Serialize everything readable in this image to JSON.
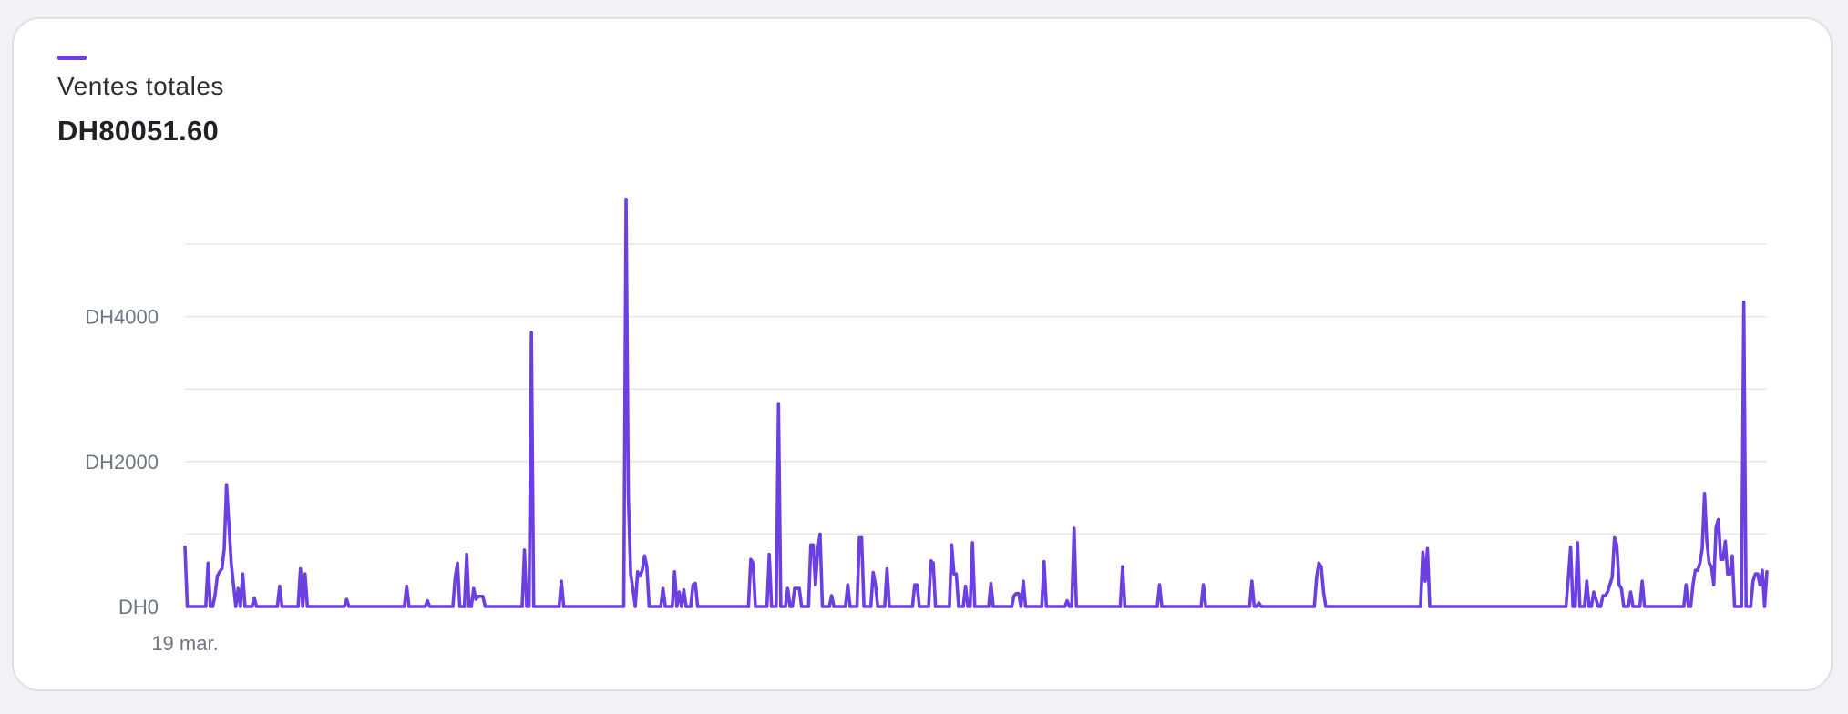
{
  "card": {
    "series_label": "Ventes totales",
    "total": "DH80051.60"
  },
  "colors": {
    "line": "#6b3fe0",
    "grid": "#e4e6ea",
    "axis_text": "#6d7585"
  },
  "chart_data": {
    "type": "line",
    "title": "",
    "xlabel": "",
    "ylabel": "",
    "currency_prefix": "DH",
    "ylim": [
      0,
      5000
    ],
    "grid": true,
    "yticks": [
      {
        "value": 0,
        "label": "DH0"
      },
      {
        "value": 2000,
        "label": "DH2000"
      },
      {
        "value": 4000,
        "label": "DH4000"
      }
    ],
    "x_tick_labels": [
      {
        "index": 0,
        "label": "19 mar."
      }
    ],
    "series": [
      {
        "values": [
          820,
          0,
          0,
          0,
          0,
          0,
          0,
          0,
          0,
          0,
          600,
          0,
          0,
          150,
          420,
          480,
          520,
          800,
          1680,
          1150,
          600,
          300,
          0,
          250,
          0,
          450,
          0,
          0,
          0,
          0,
          120,
          0,
          0,
          0,
          0,
          0,
          0,
          0,
          0,
          0,
          0,
          280,
          0,
          0,
          0,
          0,
          0,
          0,
          0,
          0,
          520,
          0,
          450,
          0,
          0,
          0,
          0,
          0,
          0,
          0,
          0,
          0,
          0,
          0,
          0,
          0,
          0,
          0,
          0,
          0,
          100,
          0,
          0,
          0,
          0,
          0,
          0,
          0,
          0,
          0,
          0,
          0,
          0,
          0,
          0,
          0,
          0,
          0,
          0,
          0,
          0,
          0,
          0,
          0,
          0,
          0,
          280,
          0,
          0,
          0,
          0,
          0,
          0,
          0,
          0,
          80,
          0,
          0,
          0,
          0,
          0,
          0,
          0,
          0,
          0,
          0,
          0,
          400,
          600,
          0,
          0,
          0,
          720,
          0,
          0,
          250,
          100,
          140,
          140,
          140,
          0,
          0,
          0,
          0,
          0,
          0,
          0,
          0,
          0,
          0,
          0,
          0,
          0,
          0,
          0,
          0,
          0,
          780,
          0,
          0,
          3780,
          0,
          0,
          0,
          0,
          0,
          0,
          0,
          0,
          0,
          0,
          0,
          0,
          350,
          0,
          0,
          0,
          0,
          0,
          0,
          0,
          0,
          0,
          0,
          0,
          0,
          0,
          0,
          0,
          0,
          0,
          0,
          0,
          0,
          0,
          0,
          0,
          0,
          0,
          0,
          0,
          5620,
          1500,
          450,
          230,
          0,
          480,
          420,
          500,
          700,
          550,
          0,
          0,
          0,
          0,
          0,
          0,
          250,
          0,
          0,
          0,
          0,
          480,
          0,
          200,
          0,
          230,
          0,
          0,
          0,
          300,
          320,
          0,
          0,
          0,
          0,
          0,
          0,
          0,
          0,
          0,
          0,
          0,
          0,
          0,
          0,
          0,
          0,
          0,
          0,
          0,
          0,
          0,
          0,
          0,
          650,
          600,
          0,
          0,
          0,
          0,
          0,
          0,
          720,
          0,
          0,
          0,
          2800,
          0,
          0,
          0,
          250,
          0,
          0,
          250,
          250,
          250,
          0,
          0,
          0,
          0,
          850,
          850,
          300,
          780,
          1000,
          0,
          0,
          0,
          0,
          150,
          0,
          0,
          0,
          0,
          0,
          0,
          300,
          0,
          0,
          0,
          0,
          950,
          950,
          0,
          0,
          0,
          0,
          470,
          300,
          0,
          0,
          0,
          0,
          520,
          0,
          0,
          0,
          0,
          0,
          0,
          0,
          0,
          0,
          0,
          0,
          300,
          300,
          0,
          0,
          0,
          0,
          0,
          630,
          600,
          0,
          0,
          0,
          0,
          0,
          0,
          0,
          850,
          450,
          450,
          0,
          0,
          0,
          280,
          0,
          0,
          880,
          0,
          0,
          0,
          0,
          0,
          0,
          0,
          320,
          0,
          0,
          0,
          0,
          0,
          0,
          0,
          0,
          0,
          150,
          180,
          180,
          0,
          350,
          0,
          0,
          0,
          0,
          0,
          0,
          0,
          0,
          620,
          0,
          0,
          0,
          0,
          0,
          0,
          0,
          0,
          0,
          80,
          0,
          0,
          1080,
          0,
          0,
          0,
          0,
          0,
          0,
          0,
          0,
          0,
          0,
          0,
          0,
          0,
          0,
          0,
          0,
          0,
          0,
          0,
          0,
          550,
          0,
          0,
          0,
          0,
          0,
          0,
          0,
          0,
          0,
          0,
          0,
          0,
          0,
          0,
          0,
          300,
          0,
          0,
          0,
          0,
          0,
          0,
          0,
          0,
          0,
          0,
          0,
          0,
          0,
          0,
          0,
          0,
          0,
          0,
          300,
          0,
          0,
          0,
          0,
          0,
          0,
          0,
          0,
          0,
          0,
          0,
          0,
          0,
          0,
          0,
          0,
          0,
          0,
          0,
          0,
          350,
          0,
          0,
          50,
          0,
          0,
          0,
          0,
          0,
          0,
          0,
          0,
          0,
          0,
          0,
          0,
          0,
          0,
          0,
          0,
          0,
          0,
          0,
          0,
          0,
          0,
          0,
          0,
          400,
          600,
          550,
          200,
          0,
          0,
          0,
          0,
          0,
          0,
          0,
          0,
          0,
          0,
          0,
          0,
          0,
          0,
          0,
          0,
          0,
          0,
          0,
          0,
          0,
          0,
          0,
          0,
          0,
          0,
          0,
          0,
          0,
          0,
          0,
          0,
          0,
          0,
          0,
          0,
          0,
          0,
          0,
          0,
          0,
          0,
          750,
          350,
          800,
          0,
          0,
          0,
          0,
          0,
          0,
          0,
          0,
          0,
          0,
          0,
          0,
          0,
          0,
          0,
          0,
          0,
          0,
          0,
          0,
          0,
          0,
          0,
          0,
          0,
          0,
          0,
          0,
          0,
          0,
          0,
          0,
          0,
          0,
          0,
          0,
          0,
          0,
          0,
          0,
          0,
          0,
          0,
          0,
          0,
          0,
          0,
          0,
          0,
          0,
          0,
          0,
          0,
          0,
          0,
          0,
          0,
          0,
          0,
          0,
          400,
          820,
          0,
          0,
          880,
          0,
          0,
          0,
          350,
          0,
          0,
          200,
          100,
          0,
          0,
          150,
          150,
          200,
          300,
          400,
          950,
          850,
          300,
          250,
          0,
          0,
          0,
          200,
          0,
          0,
          0,
          0,
          350,
          0,
          0,
          0,
          0,
          0,
          0,
          0,
          0,
          0,
          0,
          0,
          0,
          0,
          0,
          0,
          0,
          0,
          0,
          300,
          0,
          0,
          300,
          500,
          500,
          600,
          800,
          1560,
          900,
          600,
          550,
          300,
          1100,
          1200,
          650,
          650,
          900,
          450,
          450,
          700,
          0,
          0,
          0,
          0,
          4200,
          0,
          0,
          0,
          350,
          450,
          450,
          300,
          500,
          0,
          480
        ]
      }
    ]
  }
}
